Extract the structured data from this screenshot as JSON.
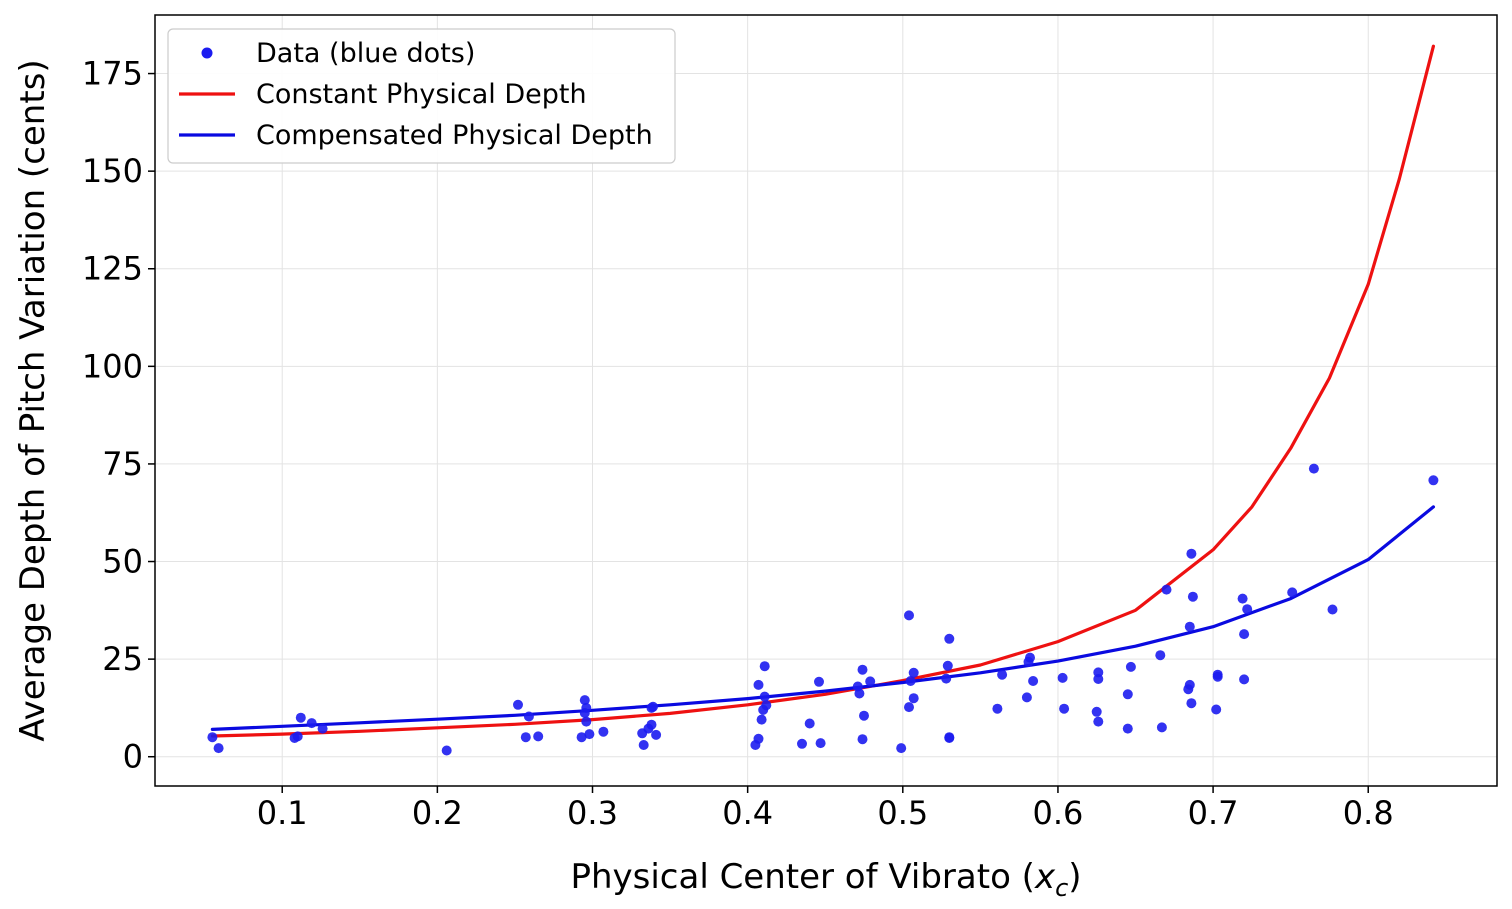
{
  "chart_data": {
    "type": "scatter",
    "xlabel_prefix": "Physical Center of Vibrato (",
    "xlabel_var": "x",
    "xlabel_sub": "c",
    "xlabel_suffix": ")",
    "ylabel": "Average Depth of Pitch Variation (cents)",
    "xlim": [
      0.018,
      0.883
    ],
    "ylim": [
      -7.5,
      190
    ],
    "xticks": [
      0.1,
      0.2,
      0.3,
      0.4,
      0.5,
      0.6,
      0.7,
      0.8
    ],
    "xtick_labels": [
      "0.1",
      "0.2",
      "0.3",
      "0.4",
      "0.5",
      "0.6",
      "0.7",
      "0.8"
    ],
    "yticks": [
      0,
      25,
      50,
      75,
      100,
      125,
      150,
      175
    ],
    "ytick_labels": [
      "0",
      "25",
      "50",
      "75",
      "100",
      "125",
      "150",
      "175"
    ],
    "grid": true,
    "legend_position": "top-left",
    "legend": [
      {
        "label": "Data (blue dots)",
        "kind": "dot",
        "color": "#1c1cf0"
      },
      {
        "label": "Constant Physical Depth",
        "kind": "line",
        "color": "#ee1111"
      },
      {
        "label": "Compensated Physical Depth",
        "kind": "line",
        "color": "#0a0ae0"
      }
    ],
    "series": [
      {
        "name": "Data (blue dots)",
        "kind": "scatter",
        "color": "#1c1cf0",
        "points": [
          [
            0.055,
            5.0
          ],
          [
            0.059,
            2.2
          ],
          [
            0.108,
            4.8
          ],
          [
            0.11,
            5.2
          ],
          [
            0.112,
            10.0
          ],
          [
            0.119,
            8.6
          ],
          [
            0.126,
            7.2
          ],
          [
            0.206,
            1.6
          ],
          [
            0.252,
            13.3
          ],
          [
            0.257,
            5.0
          ],
          [
            0.259,
            10.3
          ],
          [
            0.265,
            5.2
          ],
          [
            0.293,
            5.0
          ],
          [
            0.295,
            14.5
          ],
          [
            0.295,
            11.2
          ],
          [
            0.296,
            12.5
          ],
          [
            0.296,
            9.0
          ],
          [
            0.298,
            5.8
          ],
          [
            0.307,
            6.4
          ],
          [
            0.332,
            6.0
          ],
          [
            0.333,
            3.0
          ],
          [
            0.336,
            7.2
          ],
          [
            0.338,
            12.5
          ],
          [
            0.338,
            8.2
          ],
          [
            0.339,
            12.8
          ],
          [
            0.341,
            5.6
          ],
          [
            0.405,
            3.0
          ],
          [
            0.407,
            18.4
          ],
          [
            0.407,
            4.6
          ],
          [
            0.409,
            9.5
          ],
          [
            0.41,
            12.0
          ],
          [
            0.411,
            23.2
          ],
          [
            0.411,
            15.4
          ],
          [
            0.412,
            13.2
          ],
          [
            0.435,
            3.3
          ],
          [
            0.44,
            8.5
          ],
          [
            0.446,
            19.2
          ],
          [
            0.447,
            3.5
          ],
          [
            0.471,
            18.0
          ],
          [
            0.472,
            16.2
          ],
          [
            0.474,
            4.5
          ],
          [
            0.474,
            22.3
          ],
          [
            0.475,
            10.5
          ],
          [
            0.479,
            19.3
          ],
          [
            0.499,
            2.2
          ],
          [
            0.504,
            36.2
          ],
          [
            0.504,
            12.7
          ],
          [
            0.505,
            19.4
          ],
          [
            0.507,
            21.5
          ],
          [
            0.507,
            15.0
          ],
          [
            0.528,
            20.0
          ],
          [
            0.529,
            23.3
          ],
          [
            0.53,
            30.2
          ],
          [
            0.53,
            5.0
          ],
          [
            0.53,
            4.8
          ],
          [
            0.561,
            12.3
          ],
          [
            0.564,
            21.0
          ],
          [
            0.58,
            15.2
          ],
          [
            0.581,
            24.3
          ],
          [
            0.582,
            25.4
          ],
          [
            0.584,
            19.4
          ],
          [
            0.603,
            20.2
          ],
          [
            0.604,
            12.3
          ],
          [
            0.625,
            11.5
          ],
          [
            0.626,
            9.0
          ],
          [
            0.626,
            21.6
          ],
          [
            0.626,
            19.9
          ],
          [
            0.645,
            16.0
          ],
          [
            0.645,
            7.2
          ],
          [
            0.647,
            23.0
          ],
          [
            0.666,
            26.0
          ],
          [
            0.667,
            7.5
          ],
          [
            0.67,
            42.8
          ],
          [
            0.684,
            17.3
          ],
          [
            0.685,
            33.3
          ],
          [
            0.685,
            18.4
          ],
          [
            0.686,
            52.0
          ],
          [
            0.686,
            13.7
          ],
          [
            0.687,
            41.0
          ],
          [
            0.702,
            12.1
          ],
          [
            0.703,
            20.5
          ],
          [
            0.703,
            21.0
          ],
          [
            0.719,
            40.5
          ],
          [
            0.72,
            19.8
          ],
          [
            0.72,
            31.4
          ],
          [
            0.722,
            37.8
          ],
          [
            0.751,
            42.1
          ],
          [
            0.765,
            73.8
          ],
          [
            0.777,
            37.7
          ],
          [
            0.842,
            70.8
          ]
        ]
      },
      {
        "name": "Constant Physical Depth",
        "kind": "line",
        "color": "#ee1111",
        "points": [
          [
            0.055,
            5.3
          ],
          [
            0.1,
            5.8
          ],
          [
            0.15,
            6.5
          ],
          [
            0.2,
            7.4
          ],
          [
            0.25,
            8.3
          ],
          [
            0.3,
            9.5
          ],
          [
            0.35,
            11.1
          ],
          [
            0.4,
            13.3
          ],
          [
            0.45,
            16.0
          ],
          [
            0.5,
            19.5
          ],
          [
            0.55,
            23.5
          ],
          [
            0.6,
            29.5
          ],
          [
            0.65,
            37.5
          ],
          [
            0.7,
            53.0
          ],
          [
            0.725,
            64.0
          ],
          [
            0.75,
            79.0
          ],
          [
            0.775,
            97.0
          ],
          [
            0.8,
            121.0
          ],
          [
            0.82,
            148.0
          ],
          [
            0.842,
            182.0
          ]
        ]
      },
      {
        "name": "Compensated Physical Depth",
        "kind": "line",
        "color": "#0a0ae0",
        "points": [
          [
            0.055,
            7.0
          ],
          [
            0.1,
            7.8
          ],
          [
            0.15,
            8.7
          ],
          [
            0.2,
            9.6
          ],
          [
            0.25,
            10.6
          ],
          [
            0.3,
            11.9
          ],
          [
            0.35,
            13.3
          ],
          [
            0.4,
            14.9
          ],
          [
            0.45,
            16.8
          ],
          [
            0.5,
            19.0
          ],
          [
            0.55,
            21.5
          ],
          [
            0.6,
            24.5
          ],
          [
            0.65,
            28.3
          ],
          [
            0.7,
            33.3
          ],
          [
            0.75,
            40.5
          ],
          [
            0.8,
            50.5
          ],
          [
            0.842,
            64.0
          ]
        ]
      }
    ]
  }
}
